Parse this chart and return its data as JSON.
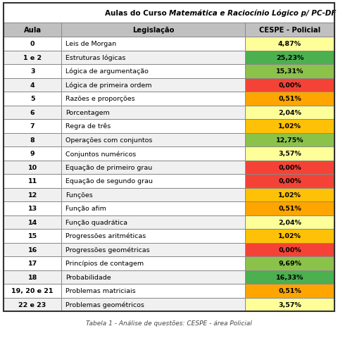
{
  "title_part1": "Aulas do Curso ",
  "title_part2": "Matemática e Raciocínio Lógico p/ PC-DF (Escrivão)",
  "col_headers": [
    "Aula",
    "Legislação",
    "CESPE - Policial"
  ],
  "caption": "Tabela 1 - Análise de questões: CESPE - área Policial",
  "rows": [
    {
      "aula": "0",
      "legislacao": "Leis de Morgan",
      "valor": "4,87%",
      "cor": "#FFFF99"
    },
    {
      "aula": "1 e 2",
      "legislacao": "Estruturas lógicas",
      "valor": "25,23%",
      "cor": "#4CAF50"
    },
    {
      "aula": "3",
      "legislacao": "Lógica de argumentação",
      "valor": "15,31%",
      "cor": "#8BC34A"
    },
    {
      "aula": "4",
      "legislacao": "Lógica de primeira ordem",
      "valor": "0,00%",
      "cor": "#F44336"
    },
    {
      "aula": "5",
      "legislacao": "Razões e proporções",
      "valor": "0,51%",
      "cor": "#FFA500"
    },
    {
      "aula": "6",
      "legislacao": "Porcentagem",
      "valor": "2,04%",
      "cor": "#FFFF99"
    },
    {
      "aula": "7",
      "legislacao": "Regra de três",
      "valor": "1,02%",
      "cor": "#FFC107"
    },
    {
      "aula": "8",
      "legislacao": "Operações com conjuntos",
      "valor": "12,75%",
      "cor": "#8BC34A"
    },
    {
      "aula": "9",
      "legislacao": "Conjuntos numéricos",
      "valor": "3,57%",
      "cor": "#FFFF99"
    },
    {
      "aula": "10",
      "legislacao": "Equação de primeiro grau",
      "valor": "0,00%",
      "cor": "#F44336"
    },
    {
      "aula": "11",
      "legislacao": "Equação de segundo grau",
      "valor": "0,00%",
      "cor": "#F44336"
    },
    {
      "aula": "12",
      "legislacao": "Funções",
      "valor": "1,02%",
      "cor": "#FFC107"
    },
    {
      "aula": "13",
      "legislacao": "Função afim",
      "valor": "0,51%",
      "cor": "#FFA500"
    },
    {
      "aula": "14",
      "legislacao": "Função quadrática",
      "valor": "2,04%",
      "cor": "#FFFF99"
    },
    {
      "aula": "15",
      "legislacao": "Progressões aritméticas",
      "valor": "1,02%",
      "cor": "#FFC107"
    },
    {
      "aula": "16",
      "legislacao": "Progressões geométricas",
      "valor": "0,00%",
      "cor": "#F44336"
    },
    {
      "aula": "17",
      "legislacao": "Princípios de contagem",
      "valor": "9,69%",
      "cor": "#8BC34A"
    },
    {
      "aula": "18",
      "legislacao": "Probabilidade",
      "valor": "16,33%",
      "cor": "#4CAF50"
    },
    {
      "aula": "19, 20 e 21",
      "legislacao": "Problemas matriciais",
      "valor": "0,51%",
      "cor": "#FFA500"
    },
    {
      "aula": "22 e 23",
      "legislacao": "Problemas geométricos",
      "valor": "3,57%",
      "cor": "#FFFF99"
    }
  ],
  "header_bg": "#C0C0C0",
  "border_color": "#888888",
  "row_bg_even": "#FFFFFF",
  "row_bg_odd": "#F0F0F0",
  "figsize": [
    4.8,
    4.81
  ],
  "dpi": 100
}
